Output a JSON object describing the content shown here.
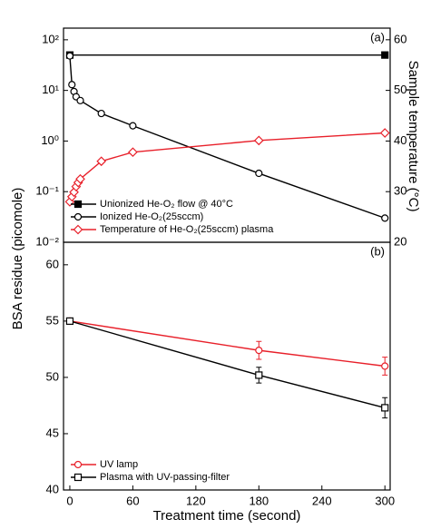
{
  "chart_data": [
    {
      "type": "line",
      "annotation": "(a)",
      "y_label": "BSA residue (picomole)",
      "y2_label": "Sample temperature (°C)",
      "log_y": true,
      "xlim": [
        -6,
        305
      ],
      "ylim": [
        0.01,
        170
      ],
      "y2lim": [
        20,
        62.3
      ],
      "yticks": [
        {
          "value": 0.01,
          "label": "10⁻²"
        },
        {
          "value": 0.1,
          "label": "10⁻¹"
        },
        {
          "value": 1,
          "label": "10⁰"
        },
        {
          "value": 10,
          "label": "10¹"
        },
        {
          "value": 100,
          "label": "10²"
        }
      ],
      "y2ticks": [
        20,
        30,
        40,
        50,
        60
      ],
      "legend": "lower left",
      "series": [
        {
          "name": "Unionized He-O₂ flow @ 40°C",
          "color": "#000000",
          "marker": "square-filled",
          "x": [
            0,
            300
          ],
          "values": [
            50,
            50
          ]
        },
        {
          "name": "Ionized He-O₂(25sccm)",
          "color": "#000000",
          "marker": "circle",
          "x": [
            0,
            2,
            4,
            6,
            10,
            30,
            60,
            180,
            300
          ],
          "values": [
            48,
            13,
            9.5,
            7.5,
            6.3,
            3.5,
            2.0,
            0.23,
            0.03
          ]
        },
        {
          "name": "Temperature of He-O₂(25sccm) plasma",
          "color": "#e8202a",
          "marker": "diamond",
          "axis": "y2",
          "x": [
            0,
            2,
            4,
            6,
            8,
            10,
            30,
            60,
            180,
            300
          ],
          "values": [
            28,
            29,
            29.9,
            31,
            31.8,
            32.5,
            36,
            37.8,
            40.1,
            41.6
          ]
        }
      ]
    },
    {
      "type": "line",
      "annotation": "(b)",
      "x_label": "Treatment time (second)",
      "xlim": [
        -6,
        305
      ],
      "xticks": [
        0,
        60,
        120,
        180,
        240,
        300
      ],
      "ylim": [
        40,
        62
      ],
      "yticks": [
        40,
        45,
        50,
        55,
        60
      ],
      "legend": "lower left",
      "series": [
        {
          "name": "UV lamp",
          "color": "#e8202a",
          "marker": "circle",
          "x": [
            0,
            180,
            300
          ],
          "values": [
            55,
            52.4,
            51.0
          ],
          "errors": [
            0,
            0.8,
            0.8
          ]
        },
        {
          "name": "Plasma with UV-passing-filter",
          "color": "#000000",
          "marker": "square",
          "x": [
            0,
            180,
            300
          ],
          "values": [
            55,
            50.2,
            47.3
          ],
          "errors": [
            0,
            0.7,
            0.9
          ]
        }
      ]
    }
  ]
}
